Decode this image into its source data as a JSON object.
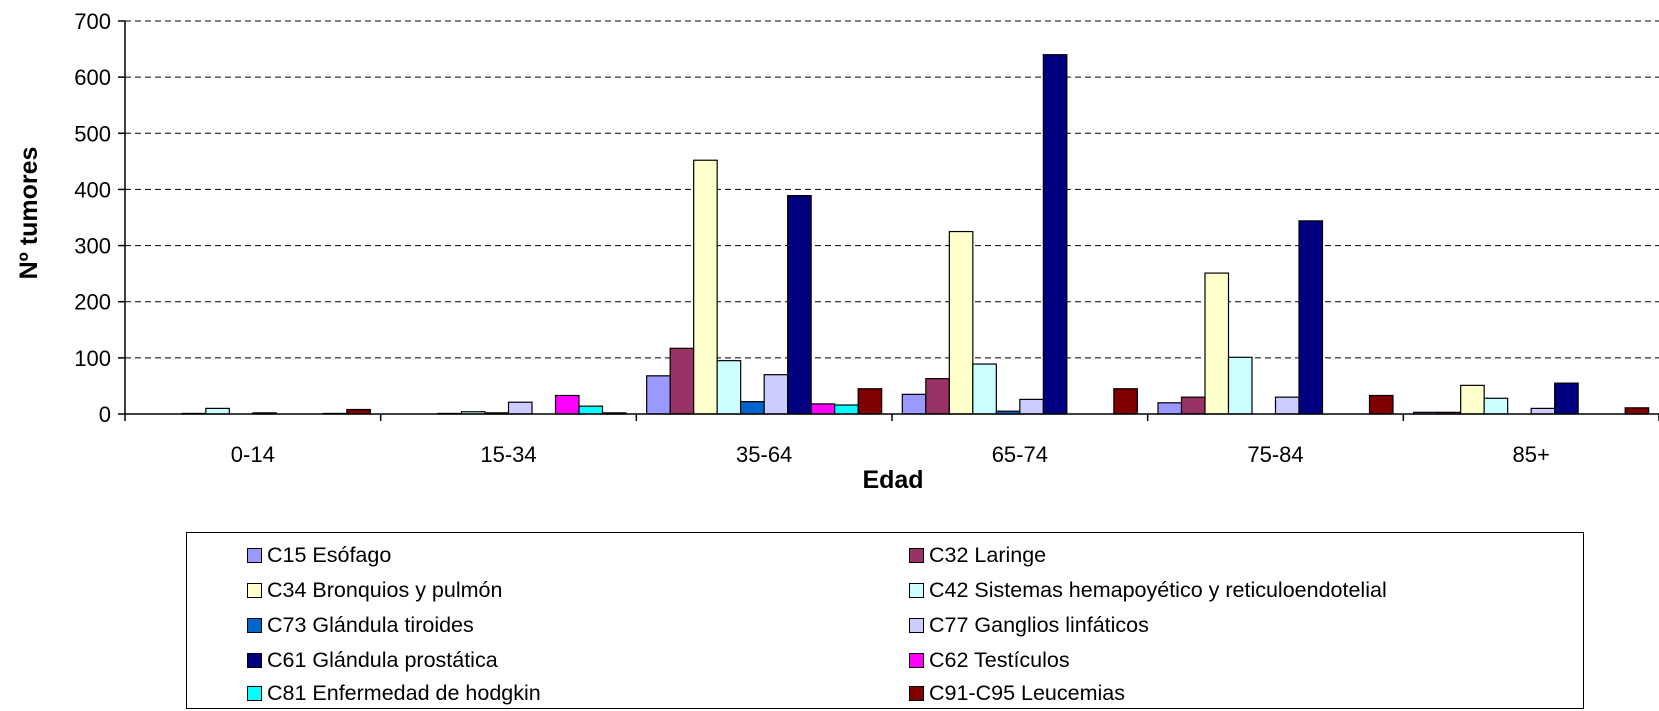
{
  "chart_data": {
    "type": "bar",
    "xlabel": "Edad",
    "ylabel": "Nº tumores",
    "ylim": [
      0,
      700
    ],
    "yticks": [
      0,
      100,
      200,
      300,
      400,
      500,
      600,
      700
    ],
    "grid": "horizontal dashed",
    "legend_position": "bottom",
    "categories": [
      "0-14",
      "15-34",
      "35-64",
      "65-74",
      "75-84",
      "85+"
    ],
    "series": [
      {
        "name": "C15 Esófago",
        "color": "#9999ff",
        "values": [
          0,
          0,
          68,
          35,
          20,
          3
        ]
      },
      {
        "name": "C32 Laringe",
        "color": "#993366",
        "values": [
          0,
          0,
          117,
          63,
          30,
          3
        ]
      },
      {
        "name": "C34 Bronquios y pulmón",
        "color": "#ffffcc",
        "values": [
          1,
          1,
          452,
          325,
          251,
          51
        ]
      },
      {
        "name": "C42 Sistemas hemapoyético y reticuloendotelial",
        "color": "#ccffff",
        "values": [
          10,
          4,
          95,
          89,
          101,
          28
        ]
      },
      {
        "name": "C73 Glándula tiroides",
        "color": "#0066cc",
        "values": [
          0,
          2,
          22,
          5,
          0,
          0
        ]
      },
      {
        "name": "C77 Ganglios linfáticos",
        "color": "#ccccff",
        "values": [
          2,
          21,
          70,
          26,
          30,
          10
        ]
      },
      {
        "name": "C61 Glándula prostática",
        "color": "#000080",
        "values": [
          0,
          0,
          389,
          640,
          344,
          55
        ]
      },
      {
        "name": "C62 Testículos",
        "color": "#ff00ff",
        "values": [
          0,
          33,
          18,
          0,
          0,
          0
        ]
      },
      {
        "name": "C81 Enfermedad de hodgkin",
        "color": "#00ffff",
        "values": [
          1,
          14,
          16,
          0,
          0,
          0
        ]
      },
      {
        "name": "C91-C95 Leucemias",
        "color": "#800000",
        "values": [
          8,
          2,
          45,
          45,
          33,
          11
        ]
      }
    ]
  }
}
